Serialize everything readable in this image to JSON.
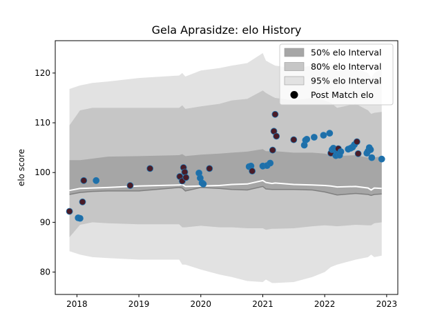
{
  "chart_data": {
    "type": "scatter",
    "title": "Gela Aprasidze: elo History",
    "xlabel": "",
    "ylabel": "elo score",
    "xlim": [
      2017.65,
      2023.18
    ],
    "ylim": [
      75.5,
      126.5
    ],
    "xticks": [
      2018,
      2019,
      2020,
      2021,
      2022,
      2023
    ],
    "xtick_labels": [
      "2018",
      "2019",
      "2020",
      "2021",
      "2022",
      "2023"
    ],
    "yticks": [
      80,
      90,
      100,
      110,
      120
    ],
    "ytick_labels": [
      "80",
      "90",
      "100",
      "110",
      "120"
    ],
    "grid": false,
    "legend_position": "top-right",
    "legend": [
      {
        "label": "50% elo Interval",
        "kind": "band",
        "color": "#a6a6a6"
      },
      {
        "label": "80% elo Interval",
        "kind": "band",
        "color": "#c6c6c6"
      },
      {
        "label": "95% elo Interval",
        "kind": "band",
        "color": "#e2e2e2"
      },
      {
        "label": "Post Match elo",
        "kind": "marker",
        "color": "#000000"
      }
    ],
    "colors": {
      "band50": "#a6a6a6",
      "band80": "#c6c6c6",
      "band95": "#e2e2e2",
      "median_line": "#ffffff",
      "lower_line": "#7f7f7f",
      "loss_point": "#4a1c27",
      "win_point": "#1f6fa8",
      "point_edge": "#1f77b4"
    },
    "bands": {
      "x": [
        2017.88,
        2018.05,
        2018.25,
        2018.5,
        2019.0,
        2019.65,
        2019.7,
        2019.75,
        2020.0,
        2020.3,
        2020.5,
        2020.75,
        2021.0,
        2021.05,
        2021.15,
        2021.2,
        2021.5,
        2021.8,
        2022.0,
        2022.1,
        2022.2,
        2022.5,
        2022.7,
        2022.75,
        2022.8,
        2022.92
      ],
      "p975": [
        116.8,
        117.5,
        118.0,
        118.3,
        119.0,
        119.5,
        120.0,
        119.3,
        120.5,
        121.0,
        121.5,
        122.0,
        124.0,
        122.5,
        121.8,
        121.5,
        121.0,
        121.5,
        122.0,
        121.5,
        120.5,
        121.0,
        120.0,
        119.0,
        120.0,
        120.8
      ],
      "p90": [
        109.5,
        112.5,
        113.0,
        113.0,
        113.0,
        113.0,
        113.5,
        112.8,
        113.3,
        113.8,
        114.5,
        114.8,
        116.5,
        116.0,
        115.3,
        115.0,
        114.5,
        115.0,
        114.5,
        114.0,
        113.0,
        113.8,
        112.5,
        111.8,
        112.0,
        112.2
      ],
      "p75": [
        102.5,
        102.5,
        102.8,
        103.2,
        103.3,
        103.5,
        103.7,
        103.3,
        103.6,
        103.8,
        104.0,
        104.2,
        104.7,
        104.3,
        104.3,
        104.3,
        104.0,
        104.0,
        103.8,
        103.5,
        103.3,
        103.5,
        103.0,
        102.8,
        103.0,
        103.3
      ],
      "median": [
        96.4,
        96.8,
        96.9,
        97.0,
        97.3,
        97.5,
        97.6,
        97.2,
        97.3,
        97.4,
        97.6,
        97.7,
        98.4,
        98.0,
        97.8,
        97.9,
        97.6,
        97.5,
        97.4,
        97.3,
        97.1,
        97.2,
        96.9,
        96.5,
        96.9,
        96.8
      ],
      "p25": [
        95.6,
        96.0,
        96.2,
        96.3,
        96.3,
        97.0,
        96.9,
        96.3,
        97.0,
        96.8,
        96.6,
        96.5,
        97.2,
        96.7,
        96.6,
        96.6,
        96.6,
        96.5,
        96.1,
        95.8,
        95.5,
        95.8,
        95.6,
        95.4,
        95.6,
        95.7
      ],
      "p10": [
        87.0,
        89.5,
        90.0,
        89.8,
        89.6,
        89.6,
        89.0,
        89.0,
        89.3,
        89.0,
        89.0,
        88.8,
        88.8,
        88.5,
        88.7,
        88.7,
        88.8,
        89.2,
        89.4,
        89.3,
        89.2,
        89.5,
        89.4,
        89.4,
        89.8,
        90.0
      ],
      "p025": [
        84.2,
        83.5,
        83.0,
        82.8,
        82.5,
        82.5,
        81.5,
        81.5,
        80.5,
        79.5,
        79.0,
        78.2,
        78.0,
        78.5,
        77.8,
        77.8,
        78.0,
        79.0,
        80.0,
        81.0,
        81.5,
        82.5,
        83.0,
        83.5,
        83.0,
        83.3
      ]
    },
    "points": [
      {
        "x": 2017.88,
        "y": 92.2,
        "result": "loss"
      },
      {
        "x": 2018.02,
        "y": 90.9,
        "result": "win"
      },
      {
        "x": 2018.05,
        "y": 90.8,
        "result": "win"
      },
      {
        "x": 2018.09,
        "y": 94.1,
        "result": "loss"
      },
      {
        "x": 2018.11,
        "y": 98.4,
        "result": "loss"
      },
      {
        "x": 2018.31,
        "y": 98.4,
        "result": "win"
      },
      {
        "x": 2018.86,
        "y": 97.4,
        "result": "loss"
      },
      {
        "x": 2019.18,
        "y": 100.8,
        "result": "loss"
      },
      {
        "x": 2019.66,
        "y": 99.2,
        "result": "loss"
      },
      {
        "x": 2019.7,
        "y": 98.3,
        "result": "loss"
      },
      {
        "x": 2019.72,
        "y": 101.0,
        "result": "loss"
      },
      {
        "x": 2019.74,
        "y": 100.1,
        "result": "loss"
      },
      {
        "x": 2019.76,
        "y": 99.0,
        "result": "loss"
      },
      {
        "x": 2019.97,
        "y": 99.9,
        "result": "win"
      },
      {
        "x": 2019.99,
        "y": 98.9,
        "result": "win"
      },
      {
        "x": 2020.02,
        "y": 97.9,
        "result": "win"
      },
      {
        "x": 2020.04,
        "y": 97.7,
        "result": "win"
      },
      {
        "x": 2020.14,
        "y": 100.8,
        "result": "loss"
      },
      {
        "x": 2020.78,
        "y": 101.2,
        "result": "win"
      },
      {
        "x": 2020.81,
        "y": 101.3,
        "result": "win"
      },
      {
        "x": 2020.83,
        "y": 100.3,
        "result": "loss"
      },
      {
        "x": 2021.0,
        "y": 101.3,
        "result": "win"
      },
      {
        "x": 2021.07,
        "y": 101.4,
        "result": "win"
      },
      {
        "x": 2021.12,
        "y": 101.9,
        "result": "win"
      },
      {
        "x": 2021.16,
        "y": 104.5,
        "result": "loss"
      },
      {
        "x": 2021.18,
        "y": 108.3,
        "result": "loss"
      },
      {
        "x": 2021.2,
        "y": 111.7,
        "result": "loss"
      },
      {
        "x": 2021.22,
        "y": 107.3,
        "result": "loss"
      },
      {
        "x": 2021.5,
        "y": 106.6,
        "result": "loss"
      },
      {
        "x": 2021.67,
        "y": 105.5,
        "result": "win"
      },
      {
        "x": 2021.69,
        "y": 106.5,
        "result": "win"
      },
      {
        "x": 2021.71,
        "y": 106.7,
        "result": "win"
      },
      {
        "x": 2021.83,
        "y": 107.1,
        "result": "win"
      },
      {
        "x": 2021.98,
        "y": 107.5,
        "result": "win"
      },
      {
        "x": 2022.08,
        "y": 107.9,
        "result": "win"
      },
      {
        "x": 2022.1,
        "y": 103.9,
        "result": "loss"
      },
      {
        "x": 2022.12,
        "y": 104.6,
        "result": "win"
      },
      {
        "x": 2022.14,
        "y": 104.9,
        "result": "win"
      },
      {
        "x": 2022.18,
        "y": 103.4,
        "result": "win"
      },
      {
        "x": 2022.2,
        "y": 104.3,
        "result": "win"
      },
      {
        "x": 2022.22,
        "y": 104.8,
        "result": "loss"
      },
      {
        "x": 2022.24,
        "y": 103.5,
        "result": "win"
      },
      {
        "x": 2022.26,
        "y": 104.2,
        "result": "win"
      },
      {
        "x": 2022.38,
        "y": 104.7,
        "result": "win"
      },
      {
        "x": 2022.42,
        "y": 104.9,
        "result": "win"
      },
      {
        "x": 2022.45,
        "y": 105.1,
        "result": "win"
      },
      {
        "x": 2022.48,
        "y": 105.6,
        "result": "win"
      },
      {
        "x": 2022.52,
        "y": 106.2,
        "result": "loss"
      },
      {
        "x": 2022.54,
        "y": 103.8,
        "result": "loss"
      },
      {
        "x": 2022.68,
        "y": 103.9,
        "result": "win"
      },
      {
        "x": 2022.7,
        "y": 104.3,
        "result": "win"
      },
      {
        "x": 2022.72,
        "y": 105.0,
        "result": "win"
      },
      {
        "x": 2022.74,
        "y": 104.6,
        "result": "win"
      },
      {
        "x": 2022.76,
        "y": 103.0,
        "result": "win"
      },
      {
        "x": 2022.92,
        "y": 102.7,
        "result": "win"
      }
    ]
  }
}
